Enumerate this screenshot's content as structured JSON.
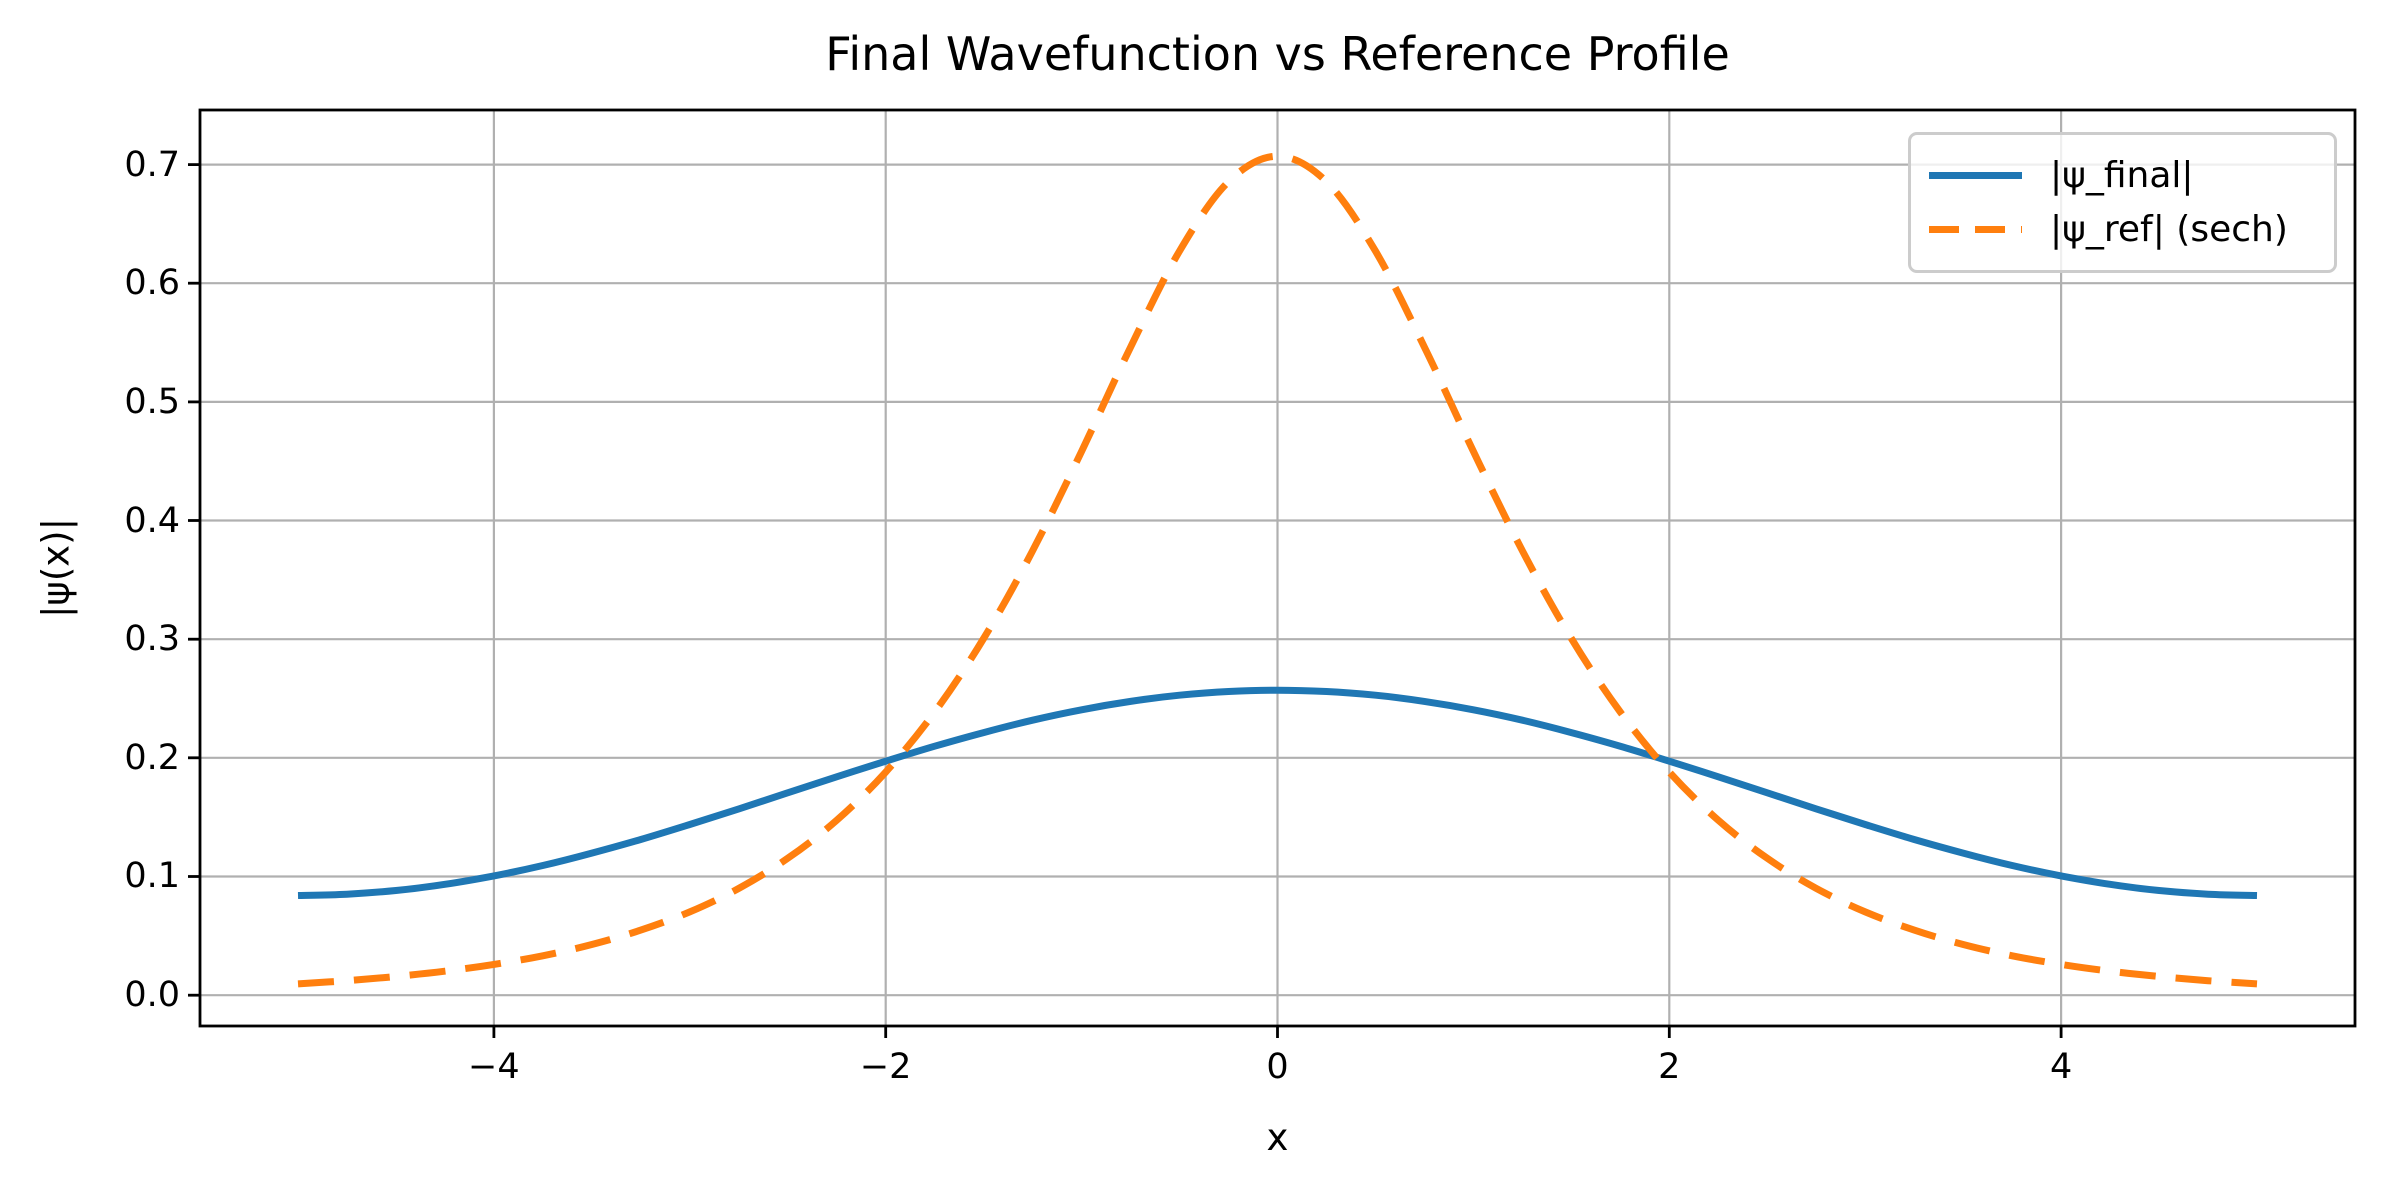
{
  "figure": {
    "background": "#ffffff",
    "spine_color": "#000000",
    "grid_color": "#b0b0b0",
    "tick_color": "#000000"
  },
  "legend": {
    "border_color": "#cccccc",
    "items": [
      {
        "label": "|ψ_final|",
        "line_style": "solid",
        "color": "#1f77b4"
      },
      {
        "label": "|ψ_ref| (sech)",
        "line_style": "dashed",
        "color": "#ff7f0e"
      }
    ]
  },
  "chart_data": {
    "type": "line",
    "title": "Final Wavefunction vs Reference Profile",
    "xlabel": "x",
    "ylabel": "|ψ(x)|",
    "xlim": [
      -5.5,
      5.5
    ],
    "ylim": [
      -0.026,
      0.746
    ],
    "grid": true,
    "legend_position": "upper right",
    "x_tick_values": [
      -4,
      -2,
      0,
      2,
      4
    ],
    "x_tick_labels": [
      "−4",
      "−2",
      "0",
      "2",
      "4"
    ],
    "y_tick_values": [
      0.0,
      0.1,
      0.2,
      0.3,
      0.4,
      0.5,
      0.6,
      0.7
    ],
    "y_tick_labels": [
      "0.0",
      "0.1",
      "0.2",
      "0.3",
      "0.4",
      "0.5",
      "0.6",
      "0.7"
    ],
    "x": [
      -5,
      -4.75,
      -4.5,
      -4.25,
      -4,
      -3.75,
      -3.5,
      -3.25,
      -3,
      -2.75,
      -2.5,
      -2.25,
      -2,
      -1.75,
      -1.5,
      -1.25,
      -1,
      -0.75,
      -0.5,
      -0.25,
      0,
      0.25,
      0.5,
      0.75,
      1,
      1.25,
      1.5,
      1.75,
      2,
      2.25,
      2.5,
      2.75,
      3,
      3.25,
      3.5,
      3.75,
      4,
      4.25,
      4.5,
      4.75,
      5
    ],
    "series": [
      {
        "name": "|ψ_final|",
        "color": "#1f77b4",
        "style": "solid",
        "linewidth": 7,
        "values": [
          0.084,
          0.0851,
          0.0882,
          0.0934,
          0.1005,
          0.1093,
          0.1197,
          0.1312,
          0.1438,
          0.157,
          0.1705,
          0.184,
          0.1972,
          0.2098,
          0.2213,
          0.2317,
          0.2405,
          0.2476,
          0.2528,
          0.2559,
          0.257,
          0.2559,
          0.2528,
          0.2476,
          0.2405,
          0.2317,
          0.2213,
          0.2098,
          0.1972,
          0.184,
          0.1705,
          0.157,
          0.1438,
          0.1312,
          0.1197,
          0.1093,
          0.1005,
          0.0934,
          0.0882,
          0.0851,
          0.084
        ]
      },
      {
        "name": "|ψ_ref| (sech)",
        "color": "#ff7f0e",
        "style": "dashed",
        "linewidth": 7,
        "values": [
          0.0095,
          0.0122,
          0.0157,
          0.0202,
          0.0259,
          0.0332,
          0.0427,
          0.0548,
          0.0702,
          0.09,
          0.1153,
          0.1474,
          0.188,
          0.2386,
          0.3006,
          0.3745,
          0.4583,
          0.5462,
          0.6271,
          0.6856,
          0.7071,
          0.6856,
          0.6271,
          0.5462,
          0.4583,
          0.3745,
          0.3006,
          0.2386,
          0.188,
          0.1474,
          0.1153,
          0.09,
          0.0702,
          0.0548,
          0.0427,
          0.0332,
          0.0259,
          0.0202,
          0.0157,
          0.0122,
          0.0095
        ]
      }
    ]
  }
}
